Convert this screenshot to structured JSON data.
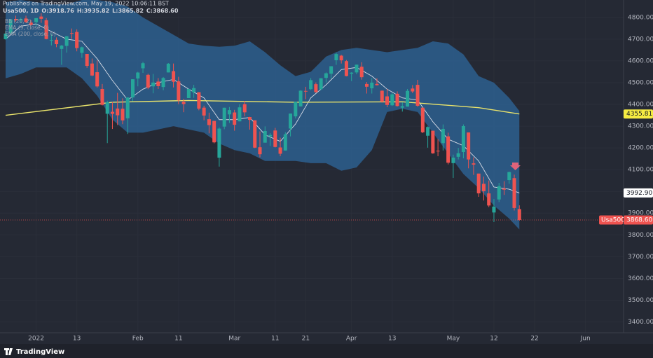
{
  "header": {
    "published": "Published on TradingView.com, May 19, 2022 10:06:11 BST",
    "title": "Usa500, 1D"
  },
  "brand": "TradingView",
  "chart_data": {
    "type": "candlestick",
    "symbol": "Usa500",
    "ohlc_labels": [
      "O:",
      "H:",
      "L:",
      "C:"
    ],
    "up_color": "#26a69a",
    "down_color": "#ef5350",
    "x": [
      "2021-12-23",
      "2021-12-27",
      "2021-12-28",
      "2021-12-29",
      "2021-12-30",
      "2021-12-31",
      "2022-01-03",
      "2022-01-04",
      "2022-01-05",
      "2022-01-06",
      "2022-01-07",
      "2022-01-10",
      "2022-01-11",
      "2022-01-12",
      "2022-01-13",
      "2022-01-14",
      "2022-01-18",
      "2022-01-19",
      "2022-01-20",
      "2022-01-21",
      "2022-01-24",
      "2022-01-25",
      "2022-01-26",
      "2022-01-27",
      "2022-01-28",
      "2022-01-31",
      "2022-02-01",
      "2022-02-02",
      "2022-02-03",
      "2022-02-04",
      "2022-02-07",
      "2022-02-08",
      "2022-02-09",
      "2022-02-10",
      "2022-02-11",
      "2022-02-14",
      "2022-02-15",
      "2022-02-16",
      "2022-02-17",
      "2022-02-18",
      "2022-02-22",
      "2022-02-23",
      "2022-02-24",
      "2022-02-25",
      "2022-02-28",
      "2022-03-01",
      "2022-03-02",
      "2022-03-03",
      "2022-03-04",
      "2022-03-07",
      "2022-03-08",
      "2022-03-09",
      "2022-03-10",
      "2022-03-11",
      "2022-03-14",
      "2022-03-15",
      "2022-03-16",
      "2022-03-17",
      "2022-03-18",
      "2022-03-21",
      "2022-03-22",
      "2022-03-23",
      "2022-03-24",
      "2022-03-25",
      "2022-03-28",
      "2022-03-29",
      "2022-03-30",
      "2022-03-31",
      "2022-04-01",
      "2022-04-04",
      "2022-04-05",
      "2022-04-06",
      "2022-04-07",
      "2022-04-08",
      "2022-04-11",
      "2022-04-12",
      "2022-04-13",
      "2022-04-14",
      "2022-04-18",
      "2022-04-19",
      "2022-04-20",
      "2022-04-21",
      "2022-04-22",
      "2022-04-25",
      "2022-04-26",
      "2022-04-27",
      "2022-04-28",
      "2022-04-29",
      "2022-05-02",
      "2022-05-03",
      "2022-05-04",
      "2022-05-05",
      "2022-05-06",
      "2022-05-09",
      "2022-05-10",
      "2022-05-11",
      "2022-05-12",
      "2022-05-13",
      "2022-05-16",
      "2022-05-17",
      "2022-05-18",
      "2022-05-19"
    ],
    "open": [
      4700,
      4727,
      4793,
      4788,
      4795,
      4776,
      4778,
      4804,
      4787,
      4693,
      4697,
      4655,
      4669,
      4728,
      4733,
      4637,
      4632,
      4588,
      4548,
      4471,
      4357,
      4366,
      4381,
      4380,
      4336,
      4432,
      4519,
      4566,
      4536,
      4483,
      4505,
      4480,
      4547,
      4553,
      4506,
      4412,
      4429,
      4456,
      4456,
      4385,
      4332,
      4324,
      4155,
      4298,
      4354,
      4363,
      4322,
      4401,
      4342,
      4327,
      4203,
      4224,
      4253,
      4280,
      4202,
      4188,
      4289,
      4345,
      4391,
      4462,
      4470,
      4493,
      4470,
      4522,
      4541,
      4603,
      4624,
      4599,
      4541,
      4547,
      4573,
      4494,
      4474,
      4494,
      4463,
      4437,
      4396,
      4449,
      4385,
      4390,
      4473,
      4490,
      4385,
      4256,
      4279,
      4187,
      4222,
      4253,
      4130,
      4159,
      4181,
      4271,
      4129,
      4082,
      4035,
      3991,
      3903,
      3963,
      4013,
      4052,
      4061,
      3918.76
    ],
    "high": [
      4740,
      4791,
      4808,
      4799,
      4808,
      4787,
      4797,
      4819,
      4797,
      4725,
      4708,
      4673,
      4714,
      4749,
      4745,
      4666,
      4632,
      4611,
      4602,
      4494,
      4417,
      4411,
      4453,
      4428,
      4432,
      4516,
      4550,
      4596,
      4541,
      4540,
      4521,
      4526,
      4590,
      4588,
      4527,
      4426,
      4472,
      4490,
      4456,
      4394,
      4362,
      4324,
      4294,
      4385,
      4388,
      4375,
      4401,
      4416,
      4343,
      4327,
      4276,
      4299,
      4268,
      4292,
      4247,
      4272,
      4358,
      4412,
      4465,
      4481,
      4521,
      4501,
      4521,
      4547,
      4576,
      4638,
      4628,
      4604,
      4548,
      4583,
      4594,
      4503,
      4521,
      4520,
      4464,
      4471,
      4453,
      4460,
      4410,
      4471,
      4489,
      4513,
      4386,
      4299,
      4279,
      4240,
      4308,
      4270,
      4169,
      4200,
      4308,
      4271,
      4157,
      4082,
      4068,
      4050,
      3965,
      4039,
      4047,
      4091,
      4077,
      3935.82
    ],
    "low": [
      4698,
      4725,
      4780,
      4778,
      4775,
      4762,
      4758,
      4775,
      4699,
      4671,
      4663,
      4582,
      4638,
      4701,
      4644,
      4614,
      4568,
      4530,
      4477,
      4395,
      4222,
      4287,
      4305,
      4309,
      4264,
      4414,
      4483,
      4545,
      4470,
      4451,
      4471,
      4465,
      4547,
      4478,
      4401,
      4364,
      4429,
      4430,
      4373,
      4327,
      4267,
      4221,
      4114,
      4286,
      4315,
      4279,
      4322,
      4345,
      4284,
      4199,
      4157,
      4224,
      4209,
      4202,
      4162,
      4188,
      4253,
      4335,
      4390,
      4424,
      4466,
      4454,
      4466,
      4501,
      4518,
      4582,
      4588,
      4529,
      4507,
      4539,
      4514,
      4450,
      4450,
      4487,
      4408,
      4387,
      4393,
      4390,
      4367,
      4390,
      4452,
      4389,
      4268,
      4201,
      4173,
      4162,
      4188,
      4124,
      4062,
      4147,
      4152,
      4106,
      4076,
      3975,
      3958,
      3928,
      3859,
      3951,
      3984,
      4035,
      3912,
      3865.82
    ],
    "close": [
      4725.8,
      4791.2,
      4786.4,
      4793.1,
      4778.7,
      4766.2,
      4796.6,
      4793.5,
      4700.6,
      4696.1,
      4677.0,
      4670.3,
      4713.1,
      4726.4,
      4659.0,
      4662.9,
      4577.1,
      4532.8,
      4482.7,
      4397.9,
      4410.1,
      4356.5,
      4349.9,
      4326.5,
      4431.9,
      4515.6,
      4546.5,
      4589.4,
      4477.4,
      4500.5,
      4483.9,
      4521.5,
      4587.2,
      4504.1,
      4418.6,
      4401.7,
      4471.1,
      4475.0,
      4380.3,
      4348.9,
      4304.8,
      4225.5,
      4288.7,
      4384.7,
      4373.9,
      4306.3,
      4386.5,
      4363.5,
      4328.9,
      4201.1,
      4170.7,
      4277.9,
      4259.5,
      4204.3,
      4173.1,
      4262.5,
      4357.9,
      4411.7,
      4463.1,
      4461.2,
      4511.6,
      4456.2,
      4520.2,
      4543.1,
      4575.5,
      4631.6,
      4602.5,
      4530.4,
      4545.9,
      4582.6,
      4525.1,
      4481.2,
      4500.2,
      4488.3,
      4412.5,
      4397.5,
      4446.6,
      4392.6,
      4391.7,
      4462.2,
      4459.5,
      4393.7,
      4271.8,
      4296.1,
      4175.2,
      4183.9,
      4287.5,
      4131.9,
      4155.4,
      4175.5,
      4300.2,
      4146.9,
      4123.3,
      3991.2,
      4001.1,
      3935.2,
      3930.1,
      4023.9,
      4008.0,
      4088.9,
      3923.7,
      3868.6
    ],
    "close_label": "3868.60",
    "bands": {
      "name": "BB (20, 2)",
      "color": "#2d5f8f",
      "x": [
        "2021-12-23",
        "2021-12-29",
        "2022-01-03",
        "2022-01-06",
        "2022-01-11",
        "2022-01-14",
        "2022-01-20",
        "2022-01-25",
        "2022-01-28",
        "2022-02-02",
        "2022-02-07",
        "2022-02-10",
        "2022-02-15",
        "2022-02-18",
        "2022-02-24",
        "2022-03-01",
        "2022-03-04",
        "2022-03-09",
        "2022-03-14",
        "2022-03-17",
        "2022-03-22",
        "2022-03-25",
        "2022-03-30",
        "2022-04-04",
        "2022-04-07",
        "2022-04-12",
        "2022-04-18",
        "2022-04-21",
        "2022-04-26",
        "2022-04-29",
        "2022-05-04",
        "2022-05-09",
        "2022-05-12",
        "2022-05-17",
        "2022-05-19"
      ],
      "upper": [
        4870,
        4880,
        4870,
        4860,
        4860,
        4880,
        4880,
        4870,
        4850,
        4800,
        4760,
        4720,
        4680,
        4670,
        4665,
        4670,
        4690,
        4640,
        4580,
        4530,
        4550,
        4620,
        4650,
        4660,
        4650,
        4640,
        4650,
        4660,
        4690,
        4680,
        4630,
        4530,
        4500,
        4430,
        4370
      ],
      "lower": [
        4520,
        4540,
        4570,
        4570,
        4570,
        4520,
        4440,
        4330,
        4270,
        4270,
        4285,
        4300,
        4285,
        4270,
        4220,
        4190,
        4175,
        4140,
        4140,
        4140,
        4130,
        4130,
        4095,
        4110,
        4190,
        4365,
        4380,
        4365,
        4270,
        4175,
        4080,
        4015,
        3935,
        3875,
        3825
      ]
    },
    "lines": [
      {
        "name": "EMA (9, close, 0)",
        "color": "#d6dbe6",
        "x": [
          "2021-12-23",
          "2021-12-29",
          "2022-01-03",
          "2022-01-06",
          "2022-01-11",
          "2022-01-14",
          "2022-01-20",
          "2022-01-25",
          "2022-01-28",
          "2022-02-02",
          "2022-02-07",
          "2022-02-10",
          "2022-02-15",
          "2022-02-18",
          "2022-02-24",
          "2022-03-01",
          "2022-03-04",
          "2022-03-09",
          "2022-03-14",
          "2022-03-17",
          "2022-03-22",
          "2022-03-25",
          "2022-03-30",
          "2022-04-04",
          "2022-04-07",
          "2022-04-12",
          "2022-04-18",
          "2022-04-21",
          "2022-04-26",
          "2022-04-29",
          "2022-05-04",
          "2022-05-09",
          "2022-05-12",
          "2022-05-17",
          "2022-05-19"
        ],
        "values": [
          4700,
          4760,
          4770,
          4735,
          4700,
          4690,
          4610,
          4510,
          4420,
          4470,
          4500,
          4515,
          4470,
          4430,
          4330,
          4330,
          4340,
          4260,
          4230,
          4310,
          4430,
          4490,
          4560,
          4570,
          4530,
          4470,
          4430,
          4420,
          4320,
          4240,
          4210,
          4140,
          4020,
          4010,
          3992.9
        ],
        "last_label": "3992.90",
        "label_color": "#ffffff"
      },
      {
        "name": "EMA (200, close, 0)",
        "color": "#e9e36b",
        "x": [
          "2021-12-23",
          "2022-01-25",
          "2022-02-15",
          "2022-03-17",
          "2022-04-18",
          "2022-05-09",
          "2022-05-19"
        ],
        "values": [
          4350,
          4410,
          4418,
          4410,
          4412,
          4385,
          4355.81
        ],
        "last_label": "4355.81",
        "label_color": "#f5ec42"
      }
    ],
    "ylim": [
      3350,
      4880
    ],
    "yticks": [
      {
        "value": 3400,
        "label": "3400.00"
      },
      {
        "value": 3500,
        "label": "3500.00"
      },
      {
        "value": 3600,
        "label": "3600.00"
      },
      {
        "value": 3700,
        "label": "3700.00"
      },
      {
        "value": 3800,
        "label": "3800.00"
      },
      {
        "value": 3900,
        "label": "3900.00"
      },
      {
        "value": 4000,
        "label": "4000.00"
      },
      {
        "value": 4100,
        "label": "4100.00"
      },
      {
        "value": 4200,
        "label": "4200.00"
      },
      {
        "value": 4300,
        "label": "4300.00"
      },
      {
        "value": 4400,
        "label": "4400.00"
      },
      {
        "value": 4500,
        "label": "4500.00"
      },
      {
        "value": 4600,
        "label": "4600.00"
      },
      {
        "value": 4700,
        "label": "4700.00"
      },
      {
        "value": 4800,
        "label": "4800.00"
      }
    ],
    "xticks": [
      {
        "value": "2022-01-03",
        "label": "2022"
      },
      {
        "value": "2022-01-13",
        "label": "13"
      },
      {
        "value": "2022-02-01",
        "label": "Feb"
      },
      {
        "value": "2022-02-11",
        "label": "11"
      },
      {
        "value": "2022-03-01",
        "label": "Mar"
      },
      {
        "value": "2022-03-11",
        "label": "11"
      },
      {
        "value": "2022-03-21",
        "label": "21"
      },
      {
        "value": "2022-04-01",
        "label": "Apr"
      },
      {
        "value": "2022-04-13",
        "label": "13"
      },
      {
        "value": "2022-05-02",
        "label": "May"
      },
      {
        "value": "2022-05-12",
        "label": "12"
      },
      {
        "value": "2022-05-22",
        "label": "22"
      },
      {
        "value": "2022-06-01",
        "label": "Jun"
      }
    ],
    "grid": true
  }
}
